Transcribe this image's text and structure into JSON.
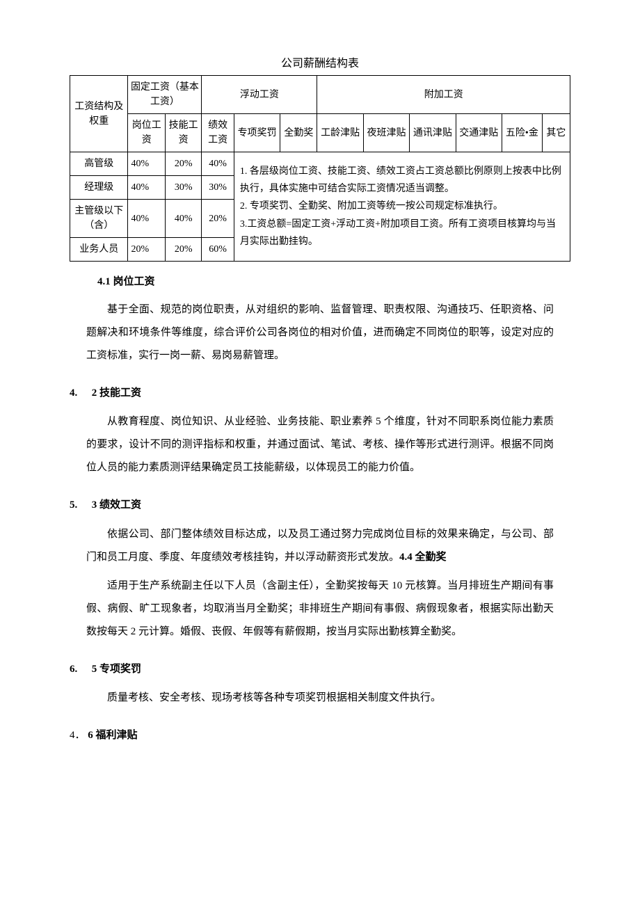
{
  "title": "公司薪酬结构表",
  "table": {
    "header_group_col1": "工资结构及权重",
    "header_group_fixed": "固定工资（基本工资）",
    "header_group_float": "浮动工资",
    "header_group_extra": "附加工资",
    "sub_headers": {
      "post": "岗位工资",
      "skill": "技能工资",
      "perf": "绩效工资",
      "special": "专项奖罚",
      "full_att": "全勤奖",
      "seniority": "工龄津贴",
      "night": "夜班津贴",
      "comm": "通讯津贴",
      "traffic": "交通津贴",
      "insurance": "五险•金",
      "other": "其它"
    },
    "rows": [
      {
        "level": "高管级",
        "post": "40%",
        "skill": "20%",
        "perf": "40%"
      },
      {
        "level": "经理级",
        "post": "40%",
        "skill": "30%",
        "perf": "30%"
      },
      {
        "level": "主管级以下（含）",
        "post": "40%",
        "skill": "40%",
        "perf": "20%"
      },
      {
        "level": "业务人员",
        "post": "20%",
        "skill": "20%",
        "perf": "60%"
      }
    ],
    "notes": {
      "n1": "1. 各层级岗位工资、技能工资、绩效工资占工资总额比例原则上按表中比例执行，具体实施中可结合实际工资情况适当调整。",
      "n2": "2. 专项奖罚、全勤奖、附加工资等统一按公司规定标准执行。",
      "n3": "3.工资总额=固定工资+浮动工资+附加项目工资。所有工资项目核算均与当月实际出勤挂钩。"
    }
  },
  "sections": {
    "s41_title": "4.1 岗位工资",
    "s41_body": "基于全面、规范的岗位职责，从对组织的影响、监督管理、职责权限、沟通技巧、任职资格、问题解决和环境条件等维度，综合评价公司各岗位的相对价值，进而确定不同岗位的职等，设定对应的工资标准，实行一岗一薪、易岗易薪管理。",
    "s42_num": "4.",
    "s42_title": "2 技能工资",
    "s42_body": "从教育程度、岗位知识、从业经验、业务技能、职业素养 5 个维度，针对不同职系岗位能力素质的要求，设计不同的测评指标和权重，并通过面试、笔试、考核、操作等形式进行测评。根据不同岗位人员的能力素质测评结果确定员工技能薪级，以体现员工的能力价值。",
    "s43_num": "5.",
    "s43_title": "3 绩效工资",
    "s43_body_a": "依据公司、部门整体绩效目标达成，以及员工通过努力完成岗位目标的效果来确定，与公司、部门和员工月度、季度、年度绩效考核挂钩，并以浮动薪资形式发放。",
    "s44_inline": "4.4 全勤奖",
    "s44_body": "适用于生产系统副主任以下人员（含副主任），全勤奖按每天 10 元核算。当月排班生产期间有事假、病假、旷工现象者，均取消当月全勤奖；非排班生产期间有事假、病假现象者，根据实际出勤天数按每天 2 元计算。婚假、丧假、年假等有薪假期，按当月实际出勤核算全勤奖。",
    "s45_num": "6.",
    "s45_title": "5 专项奖罚",
    "s45_body": "质量考核、安全考核、现场考核等各种专项奖罚根据相关制度文件执行。",
    "s46_num": "4．",
    "s46_title": "6 福利津贴"
  }
}
